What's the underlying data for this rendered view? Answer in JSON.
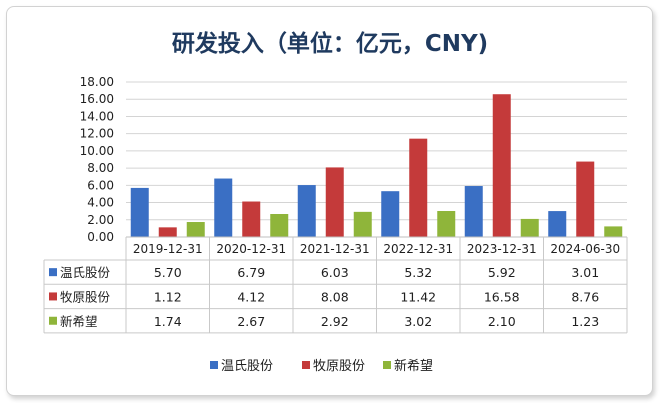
{
  "chart_data": {
    "type": "bar",
    "title": "研发投入（单位：亿元，CNY)",
    "xlabel": "",
    "ylabel": "",
    "ylim": [
      0,
      18
    ],
    "ytick_step": 2,
    "ytick_labels": [
      "0.00",
      "2.00",
      "4.00",
      "6.00",
      "8.00",
      "10.00",
      "12.00",
      "14.00",
      "16.00",
      "18.00"
    ],
    "grid": true,
    "legend": "bottom",
    "categories": [
      "2019-12-31",
      "2020-12-31",
      "2021-12-31",
      "2022-12-31",
      "2023-12-31",
      "2024-06-30"
    ],
    "series": [
      {
        "name": "温氏股份",
        "color": "#3a6fc4",
        "values": [
          5.7,
          6.79,
          6.03,
          5.32,
          5.92,
          3.01
        ],
        "labels": [
          "5.70",
          "6.79",
          "6.03",
          "5.32",
          "5.92",
          "3.01"
        ]
      },
      {
        "name": "牧原股份",
        "color": "#c43a3a",
        "values": [
          1.12,
          4.12,
          8.08,
          11.42,
          16.58,
          8.76
        ],
        "labels": [
          "1.12",
          "4.12",
          "8.08",
          "11.42",
          "16.58",
          "8.76"
        ]
      },
      {
        "name": "新希望",
        "color": "#8fb53a",
        "values": [
          1.74,
          2.67,
          2.92,
          3.02,
          2.1,
          1.23
        ],
        "labels": [
          "1.74",
          "2.67",
          "2.92",
          "3.02",
          "2.10",
          "1.23"
        ]
      }
    ]
  }
}
